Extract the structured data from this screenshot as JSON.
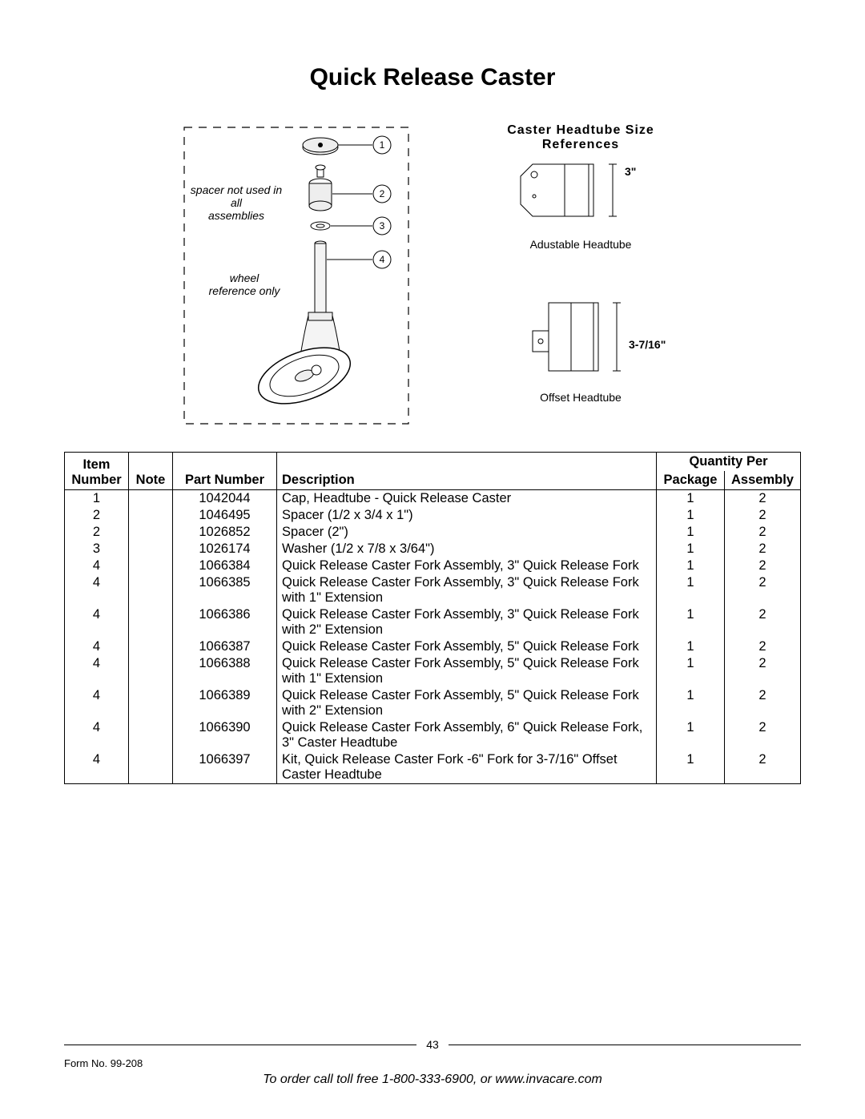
{
  "title": "Quick Release Caster",
  "left_diagram": {
    "note1": "spacer not used in all\nassemblies",
    "note2": "wheel\nreference only",
    "callouts": [
      "1",
      "2",
      "3",
      "4"
    ]
  },
  "right_diagram": {
    "heading": "Caster Headtube Size References",
    "adj_label": "Adustable Headtube",
    "adj_dim": "3\"",
    "off_label": "Offset Headtube",
    "off_dim": "3-7/16\""
  },
  "table": {
    "headers": {
      "item": "Item\nNumber",
      "note": "Note",
      "part": "Part Number",
      "desc": "Description",
      "qty_group": "Quantity Per",
      "pkg": "Package",
      "asm": "Assembly"
    },
    "rows": [
      {
        "item": "1",
        "note": "",
        "part": "1042044",
        "desc": "Cap, Headtube - Quick Release Caster",
        "pkg": "1",
        "asm": "2"
      },
      {
        "item": "2",
        "note": "",
        "part": "1046495",
        "desc": "Spacer (1/2 x 3/4 x 1\")",
        "pkg": "1",
        "asm": "2"
      },
      {
        "item": "2",
        "note": "",
        "part": "1026852",
        "desc": "Spacer (2\")",
        "pkg": "1",
        "asm": "2"
      },
      {
        "item": "3",
        "note": "",
        "part": "1026174",
        "desc": "Washer (1/2 x 7/8 x 3/64\")",
        "pkg": "1",
        "asm": "2"
      },
      {
        "item": "4",
        "note": "",
        "part": "1066384",
        "desc": "Quick Release Caster Fork Assembly, 3\" Quick Release Fork",
        "pkg": "1",
        "asm": "2"
      },
      {
        "item": "4",
        "note": "",
        "part": "1066385",
        "desc": "Quick Release Caster Fork Assembly, 3\" Quick Release Fork with 1\" Extension",
        "pkg": "1",
        "asm": "2"
      },
      {
        "item": "4",
        "note": "",
        "part": "1066386",
        "desc": "Quick Release Caster Fork Assembly, 3\" Quick Release Fork with 2\" Extension",
        "pkg": "1",
        "asm": "2"
      },
      {
        "item": "4",
        "note": "",
        "part": "1066387",
        "desc": "Quick Release Caster Fork Assembly, 5\" Quick Release Fork",
        "pkg": "1",
        "asm": "2"
      },
      {
        "item": "4",
        "note": "",
        "part": "1066388",
        "desc": "Quick Release Caster Fork Assembly, 5\" Quick Release Fork with 1\" Extension",
        "pkg": "1",
        "asm": "2"
      },
      {
        "item": "4",
        "note": "",
        "part": "1066389",
        "desc": "Quick Release Caster Fork Assembly, 5\" Quick Release Fork with 2\" Extension",
        "pkg": "1",
        "asm": "2"
      },
      {
        "item": "4",
        "note": "",
        "part": "1066390",
        "desc": "Quick Release Caster Fork Assembly, 6\" Quick Release Fork, 3\" Caster Headtube",
        "pkg": "1",
        "asm": "2"
      },
      {
        "item": "4",
        "note": "",
        "part": "1066397",
        "desc": "Kit, Quick Release Caster Fork -6\" Fork for 3-7/16\" Offset Caster Headtube",
        "pkg": "1",
        "asm": "2"
      }
    ]
  },
  "footer": {
    "page": "43",
    "form": "Form No. 99-208",
    "order": "To order call toll free 1-800-333-6900, or www.invacare.com"
  },
  "style": {
    "diagram_stroke": "#000000",
    "diagram_fill_light": "#e8e8e8"
  }
}
